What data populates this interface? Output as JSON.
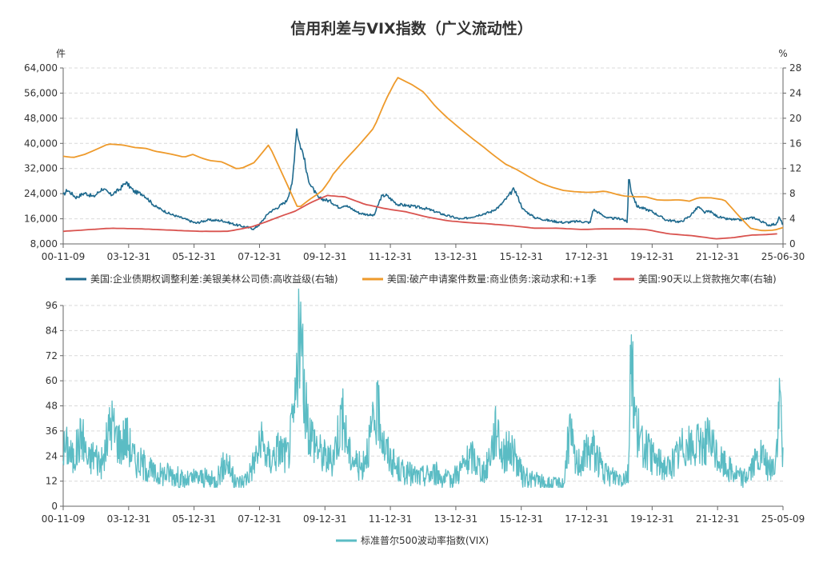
{
  "title": "信用利差与VIX指数（广义流动性）",
  "chart_data": [
    {
      "type": "line",
      "title": "信用利差与VIX指数（广义流动性）",
      "left_unit": "件",
      "right_unit": "%",
      "left_ylim": [
        8000,
        64000
      ],
      "left_ticks": [
        "8,000",
        "16,000",
        "24,000",
        "32,000",
        "40,000",
        "48,000",
        "56,000",
        "64,000"
      ],
      "right_ylim": [
        0,
        28
      ],
      "right_ticks": [
        "0",
        "4",
        "8",
        "12",
        "16",
        "20",
        "24",
        "28"
      ],
      "x_ticks": [
        "00-11-09",
        "03-12-31",
        "05-12-31",
        "07-12-31",
        "09-12-31",
        "11-12-31",
        "13-12-31",
        "15-12-31",
        "17-12-31",
        "19-12-31",
        "21-12-31",
        "25-06-30"
      ],
      "x_range": [
        2000.86,
        2025.5
      ],
      "grid": true,
      "series": [
        {
          "name": "美国:企业债期权调整利差:美银美林公司债:高收益级(右轴)",
          "axis": "right",
          "color": "#1f6a8e",
          "x": [
            2000.86,
            2001.0,
            2001.3,
            2001.6,
            2001.9,
            2002.2,
            2002.5,
            2002.8,
            2003.0,
            2003.3,
            2003.6,
            2004.0,
            2004.5,
            2005.0,
            2005.4,
            2005.8,
            2006.3,
            2006.8,
            2007.0,
            2007.4,
            2007.6,
            2007.9,
            2008.2,
            2008.5,
            2008.7,
            2008.85,
            2008.95,
            2009.1,
            2009.2,
            2009.35,
            2009.6,
            2010.0,
            2010.3,
            2010.5,
            2011.0,
            2011.5,
            2011.75,
            2011.9,
            2012.3,
            2012.8,
            2013.3,
            2014.0,
            2014.5,
            2015.0,
            2015.5,
            2015.8,
            2016.1,
            2016.3,
            2016.6,
            2017.0,
            2017.5,
            2018.0,
            2018.5,
            2018.9,
            2019.0,
            2019.5,
            2020.0,
            2020.17,
            2020.22,
            2020.3,
            2020.5,
            2021.0,
            2021.5,
            2022.0,
            2022.3,
            2022.6,
            2022.8,
            2023.0,
            2023.2,
            2023.5,
            2024.0,
            2024.5,
            2025.0,
            2025.3,
            2025.35,
            2025.5
          ],
          "values": [
            7.7,
            8.6,
            7.4,
            8.1,
            7.5,
            8.8,
            7.8,
            8.7,
            9.8,
            8.3,
            7.9,
            6.0,
            4.8,
            4.0,
            3.3,
            3.8,
            3.7,
            3.0,
            2.8,
            2.4,
            3.2,
            5.0,
            5.8,
            6.8,
            9.5,
            18.5,
            16.0,
            14.0,
            11.0,
            9.2,
            7.3,
            6.8,
            5.8,
            6.2,
            4.9,
            4.5,
            7.5,
            7.8,
            6.3,
            6.0,
            5.6,
            4.5,
            3.9,
            4.5,
            5.1,
            6.0,
            7.6,
            8.8,
            5.5,
            4.2,
            3.7,
            3.4,
            3.6,
            3.4,
            5.5,
            4.1,
            4.0,
            3.4,
            10.8,
            8.5,
            6.0,
            5.2,
            3.8,
            3.5,
            4.4,
            5.9,
            5.0,
            5.2,
            4.5,
            4.0,
            3.8,
            4.2,
            3.0,
            3.2,
            4.3,
            3.1
          ]
        },
        {
          "name": "美国:破产申请案件数量:商业债务:滚动求和:+1季",
          "axis": "left",
          "color": "#ee9a2b",
          "x": [
            2000.86,
            2001.2,
            2001.6,
            2002.0,
            2002.4,
            2002.9,
            2003.3,
            2003.7,
            2004.0,
            2004.2,
            2004.6,
            2005.0,
            2005.3,
            2005.6,
            2005.9,
            2006.3,
            2006.8,
            2007.0,
            2007.4,
            2007.9,
            2008.4,
            2008.9,
            2009.3,
            2009.7,
            2009.95,
            2010.1,
            2010.5,
            2011.0,
            2011.5,
            2011.9,
            2012.3,
            2012.8,
            2013.2,
            2013.6,
            2014.0,
            2014.5,
            2014.9,
            2015.2,
            2015.6,
            2016.0,
            2016.4,
            2016.8,
            2017.2,
            2017.6,
            2018.0,
            2018.4,
            2018.8,
            2019.1,
            2019.4,
            2019.8,
            2020.1,
            2020.5,
            2020.8,
            2021.2,
            2021.5,
            2021.8,
            2022.0,
            2022.3,
            2022.6,
            2023.0,
            2023.5,
            2024.0,
            2024.4,
            2024.8,
            2025.2,
            2025.5
          ],
          "values": [
            35900,
            35500,
            36500,
            38100,
            39800,
            39500,
            38700,
            38400,
            37500,
            37200,
            36500,
            35600,
            36500,
            35300,
            34500,
            34100,
            31900,
            32200,
            33900,
            39600,
            29500,
            19300,
            22200,
            24700,
            27800,
            30200,
            34600,
            39600,
            45000,
            53800,
            61000,
            58700,
            56300,
            51800,
            48200,
            44300,
            41300,
            39200,
            36200,
            33400,
            31600,
            29400,
            27400,
            26000,
            25000,
            24600,
            24400,
            24500,
            24800,
            23800,
            23200,
            23000,
            23000,
            22000,
            21900,
            22000,
            22000,
            21600,
            22700,
            22700,
            22000,
            16800,
            12900,
            12200,
            12400,
            13200
          ]
        },
        {
          "name": "美国:90天以上贷款拖欠率(右轴)",
          "axis": "right",
          "color": "#d9534f",
          "x": [
            2000.86,
            2001.5,
            2002.5,
            2003.5,
            2004.5,
            2005.5,
            2006.5,
            2007.3,
            2007.8,
            2008.3,
            2008.8,
            2009.3,
            2009.9,
            2010.5,
            2011.2,
            2011.9,
            2012.6,
            2013.3,
            2014.0,
            2014.7,
            2015.4,
            2016.2,
            2017.0,
            2017.8,
            2018.6,
            2019.4,
            2020.2,
            2020.8,
            2021.6,
            2022.4,
            2023.2,
            2023.8,
            2024.4,
            2025.0,
            2025.3
          ],
          "values": [
            2.0,
            2.2,
            2.5,
            2.4,
            2.2,
            2.0,
            2.0,
            2.7,
            3.5,
            4.4,
            5.2,
            6.5,
            7.7,
            7.5,
            6.3,
            5.6,
            5.1,
            4.3,
            3.7,
            3.4,
            3.2,
            2.9,
            2.5,
            2.5,
            2.3,
            2.4,
            2.4,
            2.3,
            1.6,
            1.3,
            0.8,
            1.0,
            1.4,
            1.5,
            1.6
          ]
        }
      ]
    },
    {
      "type": "line",
      "ylim": [
        0,
        96
      ],
      "y_ticks": [
        "0",
        "12",
        "24",
        "36",
        "48",
        "60",
        "72",
        "84",
        "96"
      ],
      "x_ticks": [
        "00-11-09",
        "03-12-31",
        "05-12-31",
        "07-12-31",
        "09-12-31",
        "11-12-31",
        "13-12-31",
        "15-12-31",
        "17-12-31",
        "19-12-31",
        "21-12-31",
        "25-05-09"
      ],
      "x_range": [
        2000.86,
        2025.36
      ],
      "grid": true,
      "series": [
        {
          "name": "标准普尔500波动率指数(VIX)",
          "color": "#5bbcc4",
          "x": [
            2000.86,
            2001.0,
            2001.2,
            2001.5,
            2001.7,
            2001.9,
            2002.2,
            2002.5,
            2002.6,
            2002.8,
            2003.0,
            2003.3,
            2003.6,
            2004.0,
            2004.5,
            2005.0,
            2005.5,
            2006.0,
            2006.45,
            2006.7,
            2007.0,
            2007.2,
            2007.6,
            2007.9,
            2008.2,
            2008.5,
            2008.75,
            2008.85,
            2008.95,
            2009.1,
            2009.3,
            2009.6,
            2010.0,
            2010.35,
            2010.6,
            2011.0,
            2011.6,
            2011.8,
            2012.2,
            2012.5,
            2013.0,
            2013.5,
            2014.0,
            2014.8,
            2015.2,
            2015.65,
            2015.8,
            2016.1,
            2016.5,
            2017.0,
            2017.5,
            2017.9,
            2018.1,
            2018.3,
            2018.9,
            2019.3,
            2019.9,
            2020.1,
            2020.2,
            2020.3,
            2020.5,
            2021.0,
            2021.5,
            2022.0,
            2022.3,
            2022.8,
            2023.2,
            2023.6,
            2024.0,
            2024.6,
            2024.9,
            2025.1,
            2025.27,
            2025.36
          ],
          "values": [
            27,
            29,
            22,
            35,
            21,
            25,
            20,
            42,
            36,
            30,
            34,
            22,
            20,
            15,
            16,
            12,
            14,
            12,
            22,
            11,
            12,
            16,
            30,
            22,
            28,
            24,
            46,
            75,
            80,
            45,
            35,
            26,
            21,
            44,
            25,
            18,
            46,
            28,
            18,
            16,
            14,
            16,
            12,
            24,
            15,
            40,
            24,
            28,
            14,
            12,
            10,
            11,
            37,
            20,
            28,
            15,
            14,
            16,
            82,
            45,
            30,
            22,
            18,
            30,
            27,
            32,
            22,
            17,
            13,
            24,
            17,
            20,
            52,
            24
          ]
        }
      ]
    }
  ]
}
